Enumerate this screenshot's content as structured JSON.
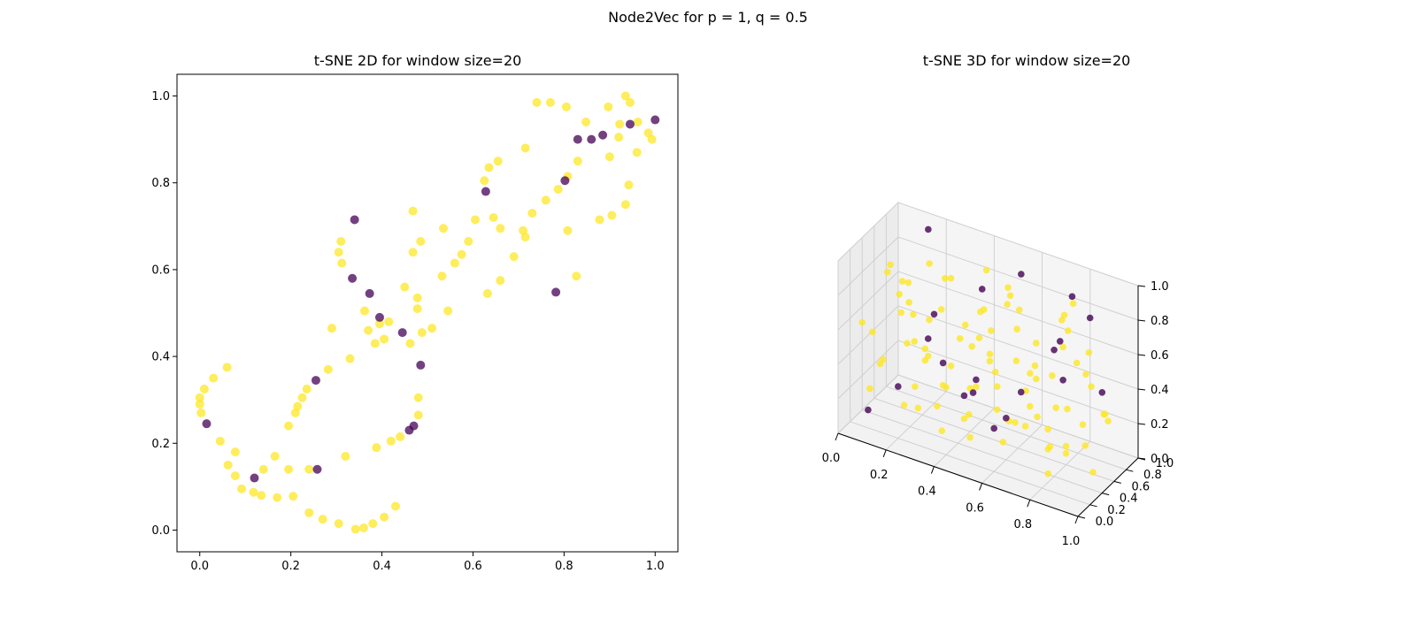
{
  "figure": {
    "title": "Node2Vec for p = 1, q = 0.5"
  },
  "colors": {
    "class0": "#440154",
    "class1": "#fde725",
    "axes_edge": "#000000",
    "pane3d": "#f2f2f2",
    "grid3d": "#d0d0d0"
  },
  "chart_data": [
    {
      "type": "scatter",
      "title": "t-SNE 2D for window size=20",
      "xlim": [
        -0.05,
        1.05
      ],
      "ylim": [
        -0.05,
        1.05
      ],
      "x_ticks": [
        "0.0",
        "0.2",
        "0.4",
        "0.6",
        "0.8",
        "1.0"
      ],
      "y_ticks": [
        "0.0",
        "0.2",
        "0.4",
        "0.6",
        "0.8",
        "1.0"
      ],
      "x_tick_values": [
        0.0,
        0.2,
        0.4,
        0.6,
        0.8,
        1.0
      ],
      "y_tick_values": [
        0.0,
        0.2,
        0.4,
        0.6,
        0.8,
        1.0
      ],
      "series": [
        {
          "color": "#fde725",
          "points": [
            [
              0.0,
              0.305
            ],
            [
              0.0,
              0.29
            ],
            [
              0.003,
              0.27
            ],
            [
              0.01,
              0.325
            ],
            [
              0.03,
              0.35
            ],
            [
              0.06,
              0.375
            ],
            [
              0.045,
              0.205
            ],
            [
              0.062,
              0.15
            ],
            [
              0.078,
              0.18
            ],
            [
              0.078,
              0.125
            ],
            [
              0.092,
              0.095
            ],
            [
              0.118,
              0.087
            ],
            [
              0.135,
              0.08
            ],
            [
              0.14,
              0.14
            ],
            [
              0.165,
              0.17
            ],
            [
              0.17,
              0.075
            ],
            [
              0.195,
              0.14
            ],
            [
              0.195,
              0.24
            ],
            [
              0.205,
              0.078
            ],
            [
              0.21,
              0.27
            ],
            [
              0.215,
              0.285
            ],
            [
              0.225,
              0.305
            ],
            [
              0.235,
              0.325
            ],
            [
              0.24,
              0.14
            ],
            [
              0.24,
              0.04
            ],
            [
              0.27,
              0.025
            ],
            [
              0.282,
              0.37
            ],
            [
              0.29,
              0.465
            ],
            [
              0.305,
              0.015
            ],
            [
              0.305,
              0.64
            ],
            [
              0.31,
              0.665
            ],
            [
              0.312,
              0.615
            ],
            [
              0.32,
              0.17
            ],
            [
              0.33,
              0.395
            ],
            [
              0.342,
              0.002
            ],
            [
              0.36,
              0.005
            ],
            [
              0.362,
              0.505
            ],
            [
              0.37,
              0.46
            ],
            [
              0.38,
              0.015
            ],
            [
              0.385,
              0.43
            ],
            [
              0.388,
              0.19
            ],
            [
              0.395,
              0.475
            ],
            [
              0.405,
              0.44
            ],
            [
              0.405,
              0.03
            ],
            [
              0.415,
              0.48
            ],
            [
              0.42,
              0.205
            ],
            [
              0.43,
              0.055
            ],
            [
              0.44,
              0.215
            ],
            [
              0.45,
              0.56
            ],
            [
              0.462,
              0.43
            ],
            [
              0.468,
              0.735
            ],
            [
              0.468,
              0.64
            ],
            [
              0.478,
              0.535
            ],
            [
              0.478,
              0.51
            ],
            [
              0.48,
              0.305
            ],
            [
              0.48,
              0.265
            ],
            [
              0.485,
              0.665
            ],
            [
              0.488,
              0.455
            ],
            [
              0.51,
              0.465
            ],
            [
              0.532,
              0.585
            ],
            [
              0.535,
              0.695
            ],
            [
              0.545,
              0.505
            ],
            [
              0.56,
              0.615
            ],
            [
              0.575,
              0.635
            ],
            [
              0.59,
              0.665
            ],
            [
              0.605,
              0.715
            ],
            [
              0.625,
              0.805
            ],
            [
              0.632,
              0.545
            ],
            [
              0.635,
              0.835
            ],
            [
              0.645,
              0.72
            ],
            [
              0.655,
              0.85
            ],
            [
              0.66,
              0.695
            ],
            [
              0.66,
              0.575
            ],
            [
              0.69,
              0.63
            ],
            [
              0.71,
              0.69
            ],
            [
              0.715,
              0.675
            ],
            [
              0.715,
              0.88
            ],
            [
              0.73,
              0.73
            ],
            [
              0.74,
              0.985
            ],
            [
              0.76,
              0.76
            ],
            [
              0.77,
              0.985
            ],
            [
              0.787,
              0.785
            ],
            [
              0.805,
              0.975
            ],
            [
              0.808,
              0.69
            ],
            [
              0.808,
              0.815
            ],
            [
              0.827,
              0.585
            ],
            [
              0.83,
              0.85
            ],
            [
              0.848,
              0.94
            ],
            [
              0.897,
              0.975
            ],
            [
              0.9,
              0.86
            ],
            [
              0.92,
              0.905
            ],
            [
              0.922,
              0.935
            ],
            [
              0.905,
              0.725
            ],
            [
              0.878,
              0.715
            ],
            [
              0.935,
              0.75
            ],
            [
              0.935,
              1.0
            ],
            [
              0.942,
              0.795
            ],
            [
              0.945,
              0.985
            ],
            [
              0.96,
              0.87
            ],
            [
              0.962,
              0.94
            ],
            [
              0.985,
              0.915
            ],
            [
              0.993,
              0.9
            ]
          ]
        },
        {
          "color": "#440154",
          "points": [
            [
              0.015,
              0.245
            ],
            [
              0.12,
              0.12
            ],
            [
              0.255,
              0.345
            ],
            [
              0.258,
              0.14
            ],
            [
              0.335,
              0.58
            ],
            [
              0.34,
              0.715
            ],
            [
              0.373,
              0.545
            ],
            [
              0.395,
              0.49
            ],
            [
              0.445,
              0.455
            ],
            [
              0.46,
              0.23
            ],
            [
              0.47,
              0.24
            ],
            [
              0.485,
              0.38
            ],
            [
              0.628,
              0.78
            ],
            [
              0.782,
              0.548
            ],
            [
              0.802,
              0.805
            ],
            [
              0.83,
              0.9
            ],
            [
              0.86,
              0.9
            ],
            [
              0.885,
              0.91
            ],
            [
              0.945,
              0.935
            ],
            [
              1.0,
              0.945
            ]
          ]
        }
      ]
    },
    {
      "type": "scatter3d",
      "title": "t-SNE 3D for window size=20",
      "xlim": [
        0,
        1
      ],
      "ylim": [
        0,
        1
      ],
      "zlim": [
        0,
        1
      ],
      "x_ticks": [
        "0.0",
        "0.2",
        "0.4",
        "0.6",
        "0.8",
        "1.0"
      ],
      "y_ticks": [
        "0.0",
        "0.2",
        "0.4",
        "0.6",
        "0.8",
        "1.0"
      ],
      "z_ticks": [
        "0.0",
        "0.2",
        "0.4",
        "0.6",
        "0.8",
        "1.0"
      ],
      "tick_values": [
        0.0,
        0.2,
        0.4,
        0.6,
        0.8,
        1.0
      ],
      "series": [
        {
          "color": "#fde725",
          "points": [
            [
              0.05,
              0.62,
              0.75
            ],
            [
              0.08,
              0.55,
              0.83
            ],
            [
              0.12,
              0.7,
              0.58
            ],
            [
              0.15,
              0.45,
              0.62
            ],
            [
              0.18,
              0.8,
              0.8
            ],
            [
              0.2,
              0.35,
              0.5
            ],
            [
              0.22,
              0.9,
              0.7
            ],
            [
              0.25,
              0.5,
              0.4
            ],
            [
              0.28,
              0.6,
              0.65
            ],
            [
              0.3,
              0.25,
              0.55
            ],
            [
              0.32,
              0.75,
              0.45
            ],
            [
              0.35,
              0.4,
              0.3
            ],
            [
              0.38,
              0.85,
              0.6
            ],
            [
              0.4,
              0.15,
              0.42
            ],
            [
              0.42,
              0.55,
              0.52
            ],
            [
              0.45,
              0.3,
              0.2
            ],
            [
              0.48,
              0.7,
              0.35
            ],
            [
              0.5,
              0.2,
              0.15
            ],
            [
              0.52,
              0.9,
              0.55
            ],
            [
              0.55,
              0.45,
              0.25
            ],
            [
              0.58,
              0.65,
              0.48
            ],
            [
              0.6,
              0.35,
              0.12
            ],
            [
              0.62,
              0.8,
              0.42
            ],
            [
              0.65,
              0.25,
              0.3
            ],
            [
              0.68,
              0.6,
              0.22
            ],
            [
              0.7,
              0.15,
              0.35
            ],
            [
              0.72,
              0.95,
              0.62
            ],
            [
              0.75,
              0.5,
              0.1
            ],
            [
              0.78,
              0.7,
              0.28
            ],
            [
              0.8,
              0.3,
              0.05
            ],
            [
              0.82,
              0.85,
              0.45
            ],
            [
              0.85,
              0.4,
              0.2
            ],
            [
              0.88,
              0.6,
              0.15
            ],
            [
              0.9,
              0.2,
              0.25
            ],
            [
              0.92,
              0.75,
              0.3
            ],
            [
              0.95,
              0.45,
              0.08
            ],
            [
              0.1,
              0.3,
              0.35
            ],
            [
              0.15,
              0.15,
              0.45
            ],
            [
              0.2,
              0.65,
              0.3
            ],
            [
              0.25,
              0.1,
              0.25
            ],
            [
              0.3,
              0.45,
              0.15
            ],
            [
              0.35,
              0.95,
              0.4
            ],
            [
              0.4,
              0.6,
              0.25
            ],
            [
              0.45,
              0.85,
              0.2
            ],
            [
              0.5,
              0.55,
              0.65
            ],
            [
              0.55,
              0.1,
              0.5
            ],
            [
              0.6,
              0.9,
              0.3
            ],
            [
              0.65,
              0.7,
              0.6
            ],
            [
              0.7,
              0.4,
              0.55
            ],
            [
              0.75,
              0.2,
              0.45
            ],
            [
              0.8,
              0.55,
              0.7
            ],
            [
              0.85,
              0.1,
              0.4
            ],
            [
              0.9,
              0.9,
              0.2
            ],
            [
              0.95,
              0.65,
              0.35
            ],
            [
              0.05,
              0.2,
              0.6
            ],
            [
              0.1,
              0.85,
              0.45
            ],
            [
              0.18,
              0.35,
              0.85
            ],
            [
              0.27,
              0.8,
              0.25
            ],
            [
              0.33,
              0.2,
              0.75
            ],
            [
              0.43,
              0.4,
              0.7
            ],
            [
              0.53,
              0.75,
              0.8
            ],
            [
              0.63,
              0.5,
              0.85
            ],
            [
              0.73,
              0.85,
              0.75
            ],
            [
              0.83,
              0.25,
              0.65
            ],
            [
              0.93,
              0.5,
              0.55
            ],
            [
              0.12,
              0.05,
              0.3
            ],
            [
              0.22,
              0.45,
              0.1
            ],
            [
              0.32,
              0.6,
              0.85
            ],
            [
              0.42,
              0.05,
              0.2
            ],
            [
              0.52,
              0.35,
              0.85
            ],
            [
              0.62,
              0.05,
              0.7
            ],
            [
              0.72,
              0.65,
              0.05
            ],
            [
              0.82,
              0.45,
              0.9
            ],
            [
              0.92,
              0.3,
              0.75
            ],
            [
              0.08,
              0.95,
              0.25
            ],
            [
              0.17,
              0.6,
              0.15
            ],
            [
              0.37,
              0.7,
              0.05
            ],
            [
              0.47,
              0.95,
              0.75
            ],
            [
              0.57,
              0.25,
              0.65
            ],
            [
              0.67,
              0.95,
              0.15
            ],
            [
              0.77,
              0.05,
              0.6
            ],
            [
              0.87,
              0.7,
              0.65
            ],
            [
              0.97,
              0.2,
              0.45
            ],
            [
              0.03,
              0.45,
              0.45
            ],
            [
              0.13,
              0.5,
              0.7
            ],
            [
              0.23,
              0.25,
              0.9
            ],
            [
              0.43,
              0.75,
              0.9
            ],
            [
              0.63,
              0.3,
              0.95
            ],
            [
              0.83,
              0.6,
              0.95
            ],
            [
              0.58,
              0.8,
              0.05
            ]
          ]
        },
        {
          "color": "#440154",
          "points": [
            [
              0.15,
              0.9,
              0.95
            ],
            [
              0.55,
              0.85,
              0.9
            ],
            [
              0.3,
              0.4,
              0.7
            ],
            [
              0.8,
              0.5,
              0.75
            ],
            [
              0.45,
              0.6,
              0.85
            ],
            [
              0.2,
              0.2,
              0.3
            ],
            [
              0.65,
              0.45,
              0.4
            ],
            [
              0.85,
              0.35,
              0.6
            ],
            [
              0.35,
              0.7,
              0.15
            ],
            [
              0.5,
              0.3,
              0.45
            ],
            [
              0.7,
              0.8,
              0.55
            ],
            [
              0.4,
              0.15,
              0.55
            ],
            [
              0.9,
              0.6,
              0.9
            ],
            [
              0.25,
              0.5,
              0.5
            ],
            [
              0.6,
              0.2,
              0.25
            ],
            [
              0.75,
              0.9,
              0.85
            ],
            [
              0.1,
              0.1,
              0.15
            ],
            [
              0.45,
              0.45,
              0.3
            ],
            [
              0.55,
              0.6,
              0.15
            ],
            [
              0.9,
              0.8,
              0.4
            ]
          ]
        }
      ]
    }
  ]
}
